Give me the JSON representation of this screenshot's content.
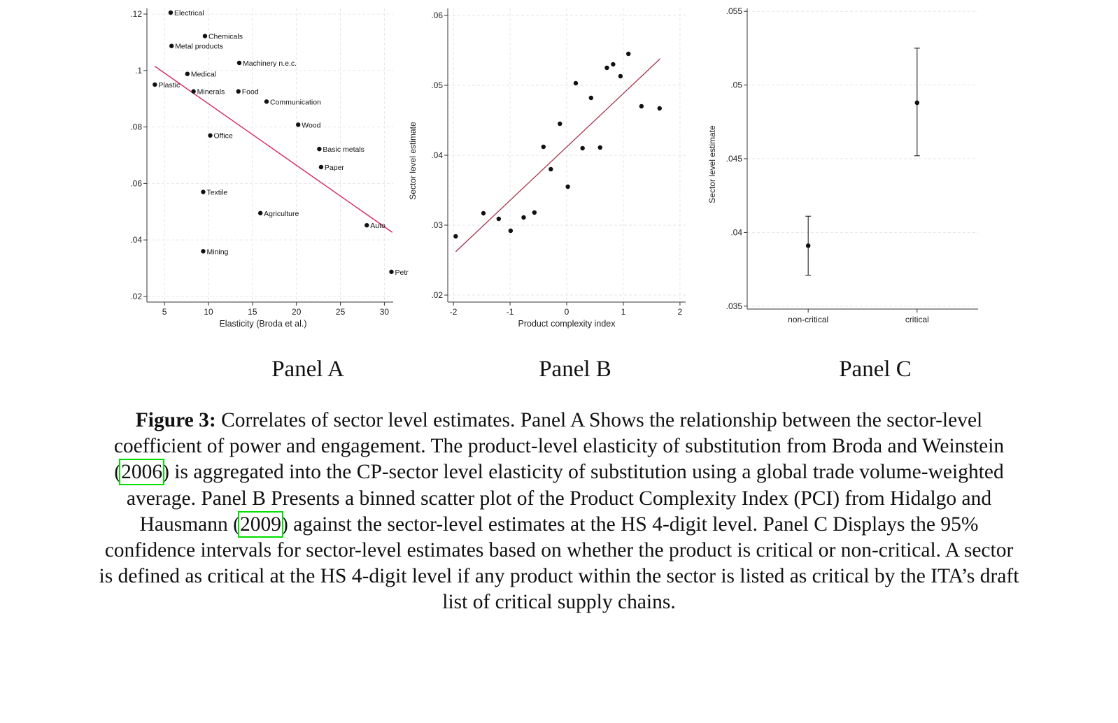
{
  "chart_data": [
    {
      "id": "panel_a",
      "type": "scatter",
      "title": "",
      "xlabel": "Elasticity (Broda et al.)",
      "ylabel": "",
      "xlim": [
        3,
        31
      ],
      "ylim": [
        0.018,
        0.122
      ],
      "xticks": [
        5,
        10,
        15,
        20,
        25,
        30
      ],
      "xtick_labels": [
        "5",
        "10",
        "15",
        "20",
        "25",
        "30"
      ],
      "yticks": [
        0.02,
        0.04,
        0.06,
        0.08,
        0.1,
        0.12
      ],
      "ytick_labels": [
        ".02",
        ".04",
        ".06",
        ".08",
        ".1",
        ".12"
      ],
      "grid": true,
      "points": [
        {
          "label": "Electrical",
          "x": 5.7,
          "y": 0.1205
        },
        {
          "label": "Chemicals",
          "x": 9.6,
          "y": 0.1122
        },
        {
          "label": "Metal products",
          "x": 5.8,
          "y": 0.1087
        },
        {
          "label": "Machinery n.e.c.",
          "x": 13.5,
          "y": 0.1027
        },
        {
          "label": "Medical",
          "x": 7.6,
          "y": 0.0988
        },
        {
          "label": "Plastic",
          "x": 3.9,
          "y": 0.095
        },
        {
          "label": "Minerals",
          "x": 8.3,
          "y": 0.0926
        },
        {
          "label": "Food",
          "x": 13.4,
          "y": 0.0926
        },
        {
          "label": "Communication",
          "x": 16.6,
          "y": 0.089
        },
        {
          "label": "Wood",
          "x": 20.2,
          "y": 0.0808
        },
        {
          "label": "Office",
          "x": 10.2,
          "y": 0.077
        },
        {
          "label": "Basic metals",
          "x": 22.6,
          "y": 0.0722
        },
        {
          "label": "Paper",
          "x": 22.8,
          "y": 0.0658
        },
        {
          "label": "Textile",
          "x": 9.4,
          "y": 0.057
        },
        {
          "label": "Agriculture",
          "x": 15.9,
          "y": 0.0495
        },
        {
          "label": "Auto",
          "x": 28.0,
          "y": 0.0452
        },
        {
          "label": "Mining",
          "x": 9.4,
          "y": 0.036
        },
        {
          "label": "Petr",
          "x": 30.8,
          "y": 0.0287
        }
      ],
      "fit_line": {
        "x": [
          3.9,
          30.9
        ],
        "y": [
          0.1015,
          0.0427
        ],
        "color": "#d4245b"
      }
    },
    {
      "id": "panel_b",
      "type": "scatter",
      "title": "",
      "xlabel": "Product complexity index",
      "ylabel": "Sector level estimate",
      "xlim": [
        -2.1,
        2.1
      ],
      "ylim": [
        0.019,
        0.061
      ],
      "xticks": [
        -2,
        -1,
        0,
        1,
        2
      ],
      "xtick_labels": [
        "-2",
        "-1",
        "0",
        "1",
        "2"
      ],
      "yticks": [
        0.02,
        0.03,
        0.04,
        0.05,
        0.06
      ],
      "ytick_labels": [
        ".02",
        ".03",
        ".04",
        ".05",
        ".06"
      ],
      "grid": true,
      "points": [
        {
          "x": -1.96,
          "y": 0.0284
        },
        {
          "x": -1.47,
          "y": 0.0317
        },
        {
          "x": -1.2,
          "y": 0.0309
        },
        {
          "x": -0.99,
          "y": 0.0292
        },
        {
          "x": -0.76,
          "y": 0.0311
        },
        {
          "x": -0.57,
          "y": 0.0318
        },
        {
          "x": -0.41,
          "y": 0.0412
        },
        {
          "x": -0.28,
          "y": 0.038
        },
        {
          "x": -0.12,
          "y": 0.0445
        },
        {
          "x": 0.02,
          "y": 0.0355
        },
        {
          "x": 0.16,
          "y": 0.0503
        },
        {
          "x": 0.28,
          "y": 0.041
        },
        {
          "x": 0.43,
          "y": 0.0482
        },
        {
          "x": 0.59,
          "y": 0.0411
        },
        {
          "x": 0.71,
          "y": 0.0525
        },
        {
          "x": 0.82,
          "y": 0.053
        },
        {
          "x": 0.95,
          "y": 0.0513
        },
        {
          "x": 1.09,
          "y": 0.0545
        },
        {
          "x": 1.32,
          "y": 0.047
        },
        {
          "x": 1.64,
          "y": 0.0467
        }
      ],
      "fit_line": {
        "x": [
          -1.96,
          1.65
        ],
        "y": [
          0.0262,
          0.0538
        ],
        "color": "#a8324c"
      }
    },
    {
      "id": "panel_c",
      "type": "scatter",
      "title": "",
      "xlabel": "",
      "ylabel": "Sector level estimate",
      "categories": [
        "non-critical",
        "critical"
      ],
      "ylim": [
        0.0348,
        0.0552
      ],
      "yticks": [
        0.035,
        0.04,
        0.045,
        0.05,
        0.055
      ],
      "ytick_labels": [
        ".035",
        ".04",
        ".045",
        ".05",
        ".055"
      ],
      "grid": true,
      "points": [
        {
          "category": "non-critical",
          "y": 0.0391,
          "ci_low": 0.0371,
          "ci_high": 0.0411
        },
        {
          "category": "critical",
          "y": 0.0488,
          "ci_low": 0.0452,
          "ci_high": 0.0525
        }
      ]
    }
  ],
  "panel_labels": {
    "a": "Panel A",
    "b": "Panel B",
    "c": "Panel C"
  },
  "caption": {
    "label": "Figure 3:",
    "part1": " Correlates of sector level estimates. Panel A Shows the relationship between the sector-level coefficient of power and engagement. The product-level elasticity of substitution from Broda and Weinstein (",
    "cite1": "2006",
    "part2": ") is aggregated into the CP-sector level elasticity of substitution using a global trade volume-weighted average. Panel B Presents a binned scatter plot of the Product Complexity Index (PCI) from Hidalgo and Hausmann (",
    "cite2": "2009",
    "part3": ") against the sector-level estimates at the HS 4-digit level. Panel C Displays the 95% confidence intervals for sector-level estimates based on whether the product is critical or non-critical. A sector is defined as critical at the HS 4-digit level if any product within the sector is listed as critical by the ITA’s draft list of critical supply chains."
  }
}
